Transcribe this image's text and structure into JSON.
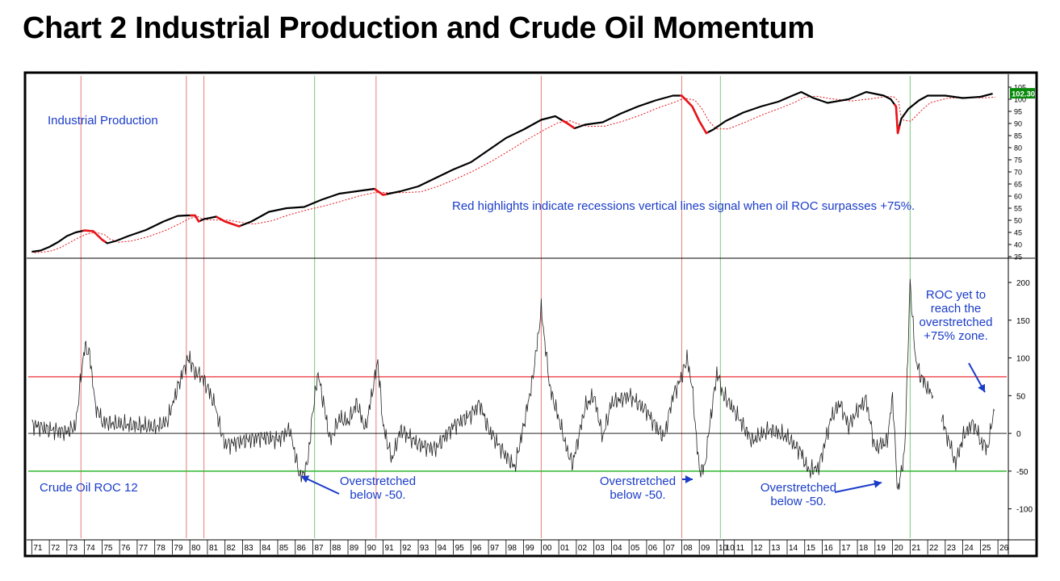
{
  "title": "Chart 2 Industrial Production and Crude Oil Momentum",
  "colors": {
    "ip_line": "#000000",
    "recession_highlight": "#e8141a",
    "moving_average": "#e8141a",
    "recession_vline": "#e87c7c",
    "oil_signal_vline": "#7cc77c",
    "upper_threshold": "#e8141a",
    "lower_threshold": "#2eb82e",
    "annotation_text": "#1a3cc8",
    "value_badge_bg": "#0a8a0a",
    "value_badge_text": "#ffffff"
  },
  "chart_data": [
    {
      "type": "line",
      "label": "Industrial Production",
      "current_value_label": "102.30",
      "ylim": [
        35,
        105
      ],
      "y_ticks": [
        35,
        40,
        45,
        50,
        55,
        60,
        65,
        70,
        75,
        80,
        85,
        90,
        95,
        100,
        105
      ],
      "annotation": "Red highlights indicate recessions vertical lines signal when oil ROC surpasses +75%.",
      "points": [
        [
          1971.0,
          37
        ],
        [
          1971.5,
          37.5
        ],
        [
          1972.0,
          39
        ],
        [
          1972.5,
          41
        ],
        [
          1973.0,
          43.5
        ],
        [
          1973.5,
          45
        ],
        [
          1974.0,
          45.8
        ],
        [
          1974.5,
          45.5
        ],
        [
          1975.0,
          42
        ],
        [
          1975.3,
          40.5
        ],
        [
          1975.8,
          41.5
        ],
        [
          1976.5,
          43.5
        ],
        [
          1977.5,
          46
        ],
        [
          1978.5,
          49.5
        ],
        [
          1979.3,
          51.8
        ],
        [
          1979.8,
          52
        ],
        [
          1980.3,
          52
        ],
        [
          1980.5,
          49.5
        ],
        [
          1980.8,
          50.5
        ],
        [
          1981.5,
          51.5
        ],
        [
          1982.0,
          49.5
        ],
        [
          1982.8,
          47.5
        ],
        [
          1983.5,
          49.5
        ],
        [
          1984.5,
          53.5
        ],
        [
          1985.5,
          55
        ],
        [
          1986.5,
          55.5
        ],
        [
          1987.5,
          58.5
        ],
        [
          1988.5,
          61
        ],
        [
          1989.5,
          62
        ],
        [
          1990.5,
          63
        ],
        [
          1991.0,
          60.5
        ],
        [
          1992.0,
          62
        ],
        [
          1993.0,
          64
        ],
        [
          1994.0,
          67.5
        ],
        [
          1995.0,
          71
        ],
        [
          1996.0,
          74
        ],
        [
          1997.0,
          79
        ],
        [
          1998.0,
          84
        ],
        [
          1999.0,
          87.5
        ],
        [
          2000.0,
          91.5
        ],
        [
          2000.8,
          93
        ],
        [
          2001.5,
          90
        ],
        [
          2001.9,
          88
        ],
        [
          2002.5,
          89.5
        ],
        [
          2003.5,
          90.5
        ],
        [
          2004.5,
          94
        ],
        [
          2005.5,
          97
        ],
        [
          2006.5,
          99.5
        ],
        [
          2007.5,
          101.5
        ],
        [
          2008.0,
          101.5
        ],
        [
          2008.6,
          97
        ],
        [
          2009.0,
          91
        ],
        [
          2009.4,
          86
        ],
        [
          2009.8,
          87.5
        ],
        [
          2010.5,
          91
        ],
        [
          2011.5,
          94.5
        ],
        [
          2012.5,
          97
        ],
        [
          2013.5,
          99
        ],
        [
          2014.3,
          101.5
        ],
        [
          2014.8,
          103
        ],
        [
          2015.5,
          100.5
        ],
        [
          2016.3,
          98.5
        ],
        [
          2017.5,
          100
        ],
        [
          2018.5,
          103
        ],
        [
          2019.5,
          101.5
        ],
        [
          2019.9,
          100
        ],
        [
          2020.2,
          97
        ],
        [
          2020.3,
          86
        ],
        [
          2020.5,
          92
        ],
        [
          2020.9,
          96
        ],
        [
          2021.5,
          99.5
        ],
        [
          2022.0,
          101.5
        ],
        [
          2023.0,
          101.5
        ],
        [
          2024.0,
          100.5
        ],
        [
          2025.0,
          101
        ],
        [
          2025.7,
          102.3
        ]
      ],
      "recessions": [
        [
          1973.9,
          1975.2
        ],
        [
          1980.0,
          1980.6
        ],
        [
          1981.5,
          1982.9
        ],
        [
          1990.5,
          1991.2
        ],
        [
          2001.2,
          2001.9
        ],
        [
          2007.9,
          2009.5
        ],
        [
          2020.1,
          2020.4
        ]
      ]
    },
    {
      "type": "line",
      "label": "Crude Oil ROC 12",
      "ylim": [
        -140,
        230
      ],
      "y_ticks": [
        -100,
        -50,
        0,
        50,
        100,
        150,
        200
      ],
      "thresholds": [
        75,
        -50
      ],
      "points": [
        [
          1971.0,
          12
        ],
        [
          1972.0,
          5
        ],
        [
          1973.0,
          2
        ],
        [
          1973.5,
          10
        ],
        [
          1973.8,
          75
        ],
        [
          1974.0,
          115
        ],
        [
          1974.3,
          105
        ],
        [
          1974.6,
          40
        ],
        [
          1975.0,
          15
        ],
        [
          1976.0,
          12
        ],
        [
          1977.0,
          10
        ],
        [
          1978.0,
          8
        ],
        [
          1978.7,
          15
        ],
        [
          1979.3,
          60
        ],
        [
          1979.8,
          95
        ],
        [
          1980.0,
          98
        ],
        [
          1980.3,
          80
        ],
        [
          1980.7,
          75
        ],
        [
          1981.0,
          60
        ],
        [
          1981.4,
          40
        ],
        [
          1981.7,
          10
        ],
        [
          1982.0,
          -15
        ],
        [
          1983.0,
          -10
        ],
        [
          1984.0,
          -5
        ],
        [
          1985.0,
          -8
        ],
        [
          1985.7,
          5
        ],
        [
          1986.0,
          -30
        ],
        [
          1986.3,
          -60
        ],
        [
          1986.7,
          -40
        ],
        [
          1987.0,
          30
        ],
        [
          1987.3,
          80
        ],
        [
          1987.6,
          40
        ],
        [
          1988.0,
          -10
        ],
        [
          1988.5,
          20
        ],
        [
          1989.0,
          15
        ],
        [
          1989.5,
          40
        ],
        [
          1990.0,
          5
        ],
        [
          1990.5,
          70
        ],
        [
          1990.7,
          95
        ],
        [
          1991.0,
          10
        ],
        [
          1991.5,
          -35
        ],
        [
          1992.0,
          5
        ],
        [
          1993.0,
          -15
        ],
        [
          1994.0,
          -20
        ],
        [
          1995.0,
          10
        ],
        [
          1996.0,
          25
        ],
        [
          1996.5,
          40
        ],
        [
          1997.0,
          5
        ],
        [
          1998.0,
          -30
        ],
        [
          1998.5,
          -45
        ],
        [
          1999.0,
          10
        ],
        [
          1999.5,
          70
        ],
        [
          1999.8,
          125
        ],
        [
          2000.0,
          165
        ],
        [
          2000.5,
          60
        ],
        [
          2001.0,
          20
        ],
        [
          2001.5,
          -25
        ],
        [
          2001.8,
          -40
        ],
        [
          2002.5,
          35
        ],
        [
          2003.0,
          50
        ],
        [
          2003.5,
          -5
        ],
        [
          2004.0,
          40
        ],
        [
          2004.5,
          45
        ],
        [
          2005.0,
          50
        ],
        [
          2005.5,
          40
        ],
        [
          2006.0,
          30
        ],
        [
          2006.5,
          10
        ],
        [
          2007.0,
          -5
        ],
        [
          2007.5,
          50
        ],
        [
          2008.0,
          75
        ],
        [
          2008.3,
          100
        ],
        [
          2008.6,
          60
        ],
        [
          2009.0,
          -50
        ],
        [
          2009.3,
          -45
        ],
        [
          2009.7,
          30
        ],
        [
          2010.0,
          80
        ],
        [
          2010.4,
          50
        ],
        [
          2011.0,
          30
        ],
        [
          2011.5,
          10
        ],
        [
          2012.0,
          -10
        ],
        [
          2013.0,
          5
        ],
        [
          2014.0,
          -5
        ],
        [
          2014.8,
          -25
        ],
        [
          2015.2,
          -50
        ],
        [
          2015.8,
          -45
        ],
        [
          2016.5,
          20
        ],
        [
          2017.0,
          40
        ],
        [
          2017.5,
          10
        ],
        [
          2018.0,
          30
        ],
        [
          2018.5,
          45
        ],
        [
          2019.0,
          -20
        ],
        [
          2019.7,
          -10
        ],
        [
          2020.0,
          50
        ],
        [
          2020.3,
          -80
        ],
        [
          2020.7,
          -20
        ],
        [
          2021.0,
          200
        ],
        [
          2021.3,
          100
        ],
        [
          2021.6,
          75
        ],
        [
          2022.0,
          60
        ],
        [
          2022.3,
          50
        ]
      ],
      "points_late": [
        [
          2022.8,
          20
        ],
        [
          2023.2,
          -10
        ],
        [
          2023.6,
          -40
        ],
        [
          2024.0,
          -5
        ],
        [
          2024.6,
          15
        ],
        [
          2025.0,
          -10
        ],
        [
          2025.4,
          -20
        ],
        [
          2025.8,
          30
        ]
      ],
      "annotations": [
        {
          "lines": [
            "Overstretched",
            "below -50."
          ],
          "x_year": 1986.6,
          "y_value": -60
        },
        {
          "lines": [
            "Overstretched",
            "below -50."
          ],
          "x_year": 2008.8,
          "y_value": -55
        },
        {
          "lines": [
            "Overstretched",
            "below -50."
          ],
          "x_year": 2019.6,
          "y_value": -65
        },
        {
          "lines": [
            "ROC yet to",
            "reach the",
            "overstretched",
            "+75% zone."
          ],
          "x_year": 2025.9,
          "y_value": 50
        }
      ]
    }
  ],
  "recession_vlines": [
    1973.8,
    1979.8,
    1980.8,
    1990.6,
    2000.0,
    2008.0
  ],
  "oil_signal_vlines": [
    1987.1,
    2010.2,
    2021.0
  ],
  "x_axis": {
    "xlim": [
      1970.8,
      2026.5
    ],
    "ticks": [
      {
        "label": "71",
        "year": 1971
      },
      {
        "label": "72",
        "year": 1972
      },
      {
        "label": "73",
        "year": 1973
      },
      {
        "label": "74",
        "year": 1974
      },
      {
        "label": "75",
        "year": 1975
      },
      {
        "label": "76",
        "year": 1976
      },
      {
        "label": "77",
        "year": 1977
      },
      {
        "label": "78",
        "year": 1978
      },
      {
        "label": "79",
        "year": 1979
      },
      {
        "label": "80",
        "year": 1980
      },
      {
        "label": "81",
        "year": 1981
      },
      {
        "label": "82",
        "year": 1982
      },
      {
        "label": "83",
        "year": 1983
      },
      {
        "label": "84",
        "year": 1984
      },
      {
        "label": "85",
        "year": 1985
      },
      {
        "label": "86",
        "year": 1986
      },
      {
        "label": "87",
        "year": 1987
      },
      {
        "label": "88",
        "year": 1988
      },
      {
        "label": "89",
        "year": 1989
      },
      {
        "label": "90",
        "year": 1990
      },
      {
        "label": "91",
        "year": 1991
      },
      {
        "label": "92",
        "year": 1992
      },
      {
        "label": "93",
        "year": 1993
      },
      {
        "label": "94",
        "year": 1994
      },
      {
        "label": "95",
        "year": 1995
      },
      {
        "label": "96",
        "year": 1996
      },
      {
        "label": "97",
        "year": 1997
      },
      {
        "label": "98",
        "year": 1998
      },
      {
        "label": "99",
        "year": 1999
      },
      {
        "label": "00",
        "year": 2000
      },
      {
        "label": "01",
        "year": 2001
      },
      {
        "label": "02",
        "year": 2002
      },
      {
        "label": "03",
        "year": 2003
      },
      {
        "label": "04",
        "year": 2004
      },
      {
        "label": "05",
        "year": 2005
      },
      {
        "label": "06",
        "year": 2006
      },
      {
        "label": "07",
        "year": 2007
      },
      {
        "label": "08",
        "year": 2008
      },
      {
        "label": "09",
        "year": 2009
      },
      {
        "label": "10",
        "year": 2010
      },
      {
        "label": "10",
        "year": 2010.4
      },
      {
        "label": "11",
        "year": 2011
      },
      {
        "label": "12",
        "year": 2012
      },
      {
        "label": "13",
        "year": 2013
      },
      {
        "label": "14",
        "year": 2014
      },
      {
        "label": "15",
        "year": 2015
      },
      {
        "label": "16",
        "year": 2016
      },
      {
        "label": "17",
        "year": 2017
      },
      {
        "label": "18",
        "year": 2018
      },
      {
        "label": "19",
        "year": 2019
      },
      {
        "label": "20",
        "year": 2020
      },
      {
        "label": "21",
        "year": 2021
      },
      {
        "label": "22",
        "year": 2022
      },
      {
        "label": "23",
        "year": 2023
      },
      {
        "label": "24",
        "year": 2024
      },
      {
        "label": "25",
        "year": 2025
      },
      {
        "label": "26",
        "year": 2026
      }
    ]
  }
}
